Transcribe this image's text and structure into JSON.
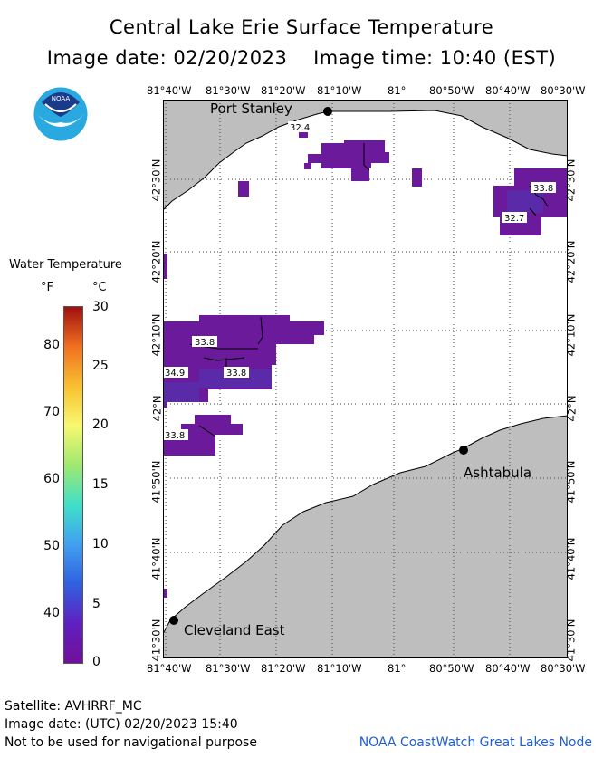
{
  "header": {
    "title": "Central Lake Erie Surface Temperature",
    "image_date_line": "Image date: 02/20/2023    Image time: 10:40 (EST)"
  },
  "logo": {
    "text": "NOAA",
    "icon": "noaa-logo"
  },
  "legend": {
    "title": "Water Temperature",
    "unit_f": "°F",
    "unit_c": "°C",
    "ticks_f": [
      "80",
      "70",
      "60",
      "50",
      "40"
    ],
    "ticks_c": [
      "30",
      "25",
      "20",
      "15",
      "10",
      "5",
      "0"
    ],
    "colors": [
      "#a01010",
      "#f07020",
      "#f8c030",
      "#f8f870",
      "#a0e870",
      "#40e0c8",
      "#40a0f0",
      "#3060e0",
      "#6020c0",
      "#70109a"
    ]
  },
  "map": {
    "lon_labels": [
      "81°40'W",
      "81°30'W",
      "81°20'W",
      "81°10'W",
      "81°",
      "80°50'W",
      "80°40'W",
      "80°30'W"
    ],
    "lat_labels": [
      "42°30'N",
      "42°20'N",
      "42°10'N",
      "42°N",
      "41°50'N",
      "41°40'N",
      "41°30'N"
    ],
    "places": {
      "port_stanley": "Port Stanley",
      "ashtabula": "Ashtabula",
      "cleveland_east": "Cleveland East"
    },
    "temp_labels": [
      "32.4",
      "33.8",
      "32.7",
      "33.8",
      "34.9",
      "33.8",
      "33.8"
    ],
    "colors": {
      "land": "#bebebe",
      "water": "#ffffff",
      "cold_water": "#6a1a9a",
      "cold_water_alt": "#5a2aa8"
    }
  },
  "footer": {
    "satellite": "Satellite: AVHRRF_MC",
    "utc_date": "Image date: (UTC) 02/20/2023  15:40",
    "disclaimer": "Not to be used for navigational purpose",
    "credit": "NOAA CoastWatch Great Lakes Node"
  }
}
